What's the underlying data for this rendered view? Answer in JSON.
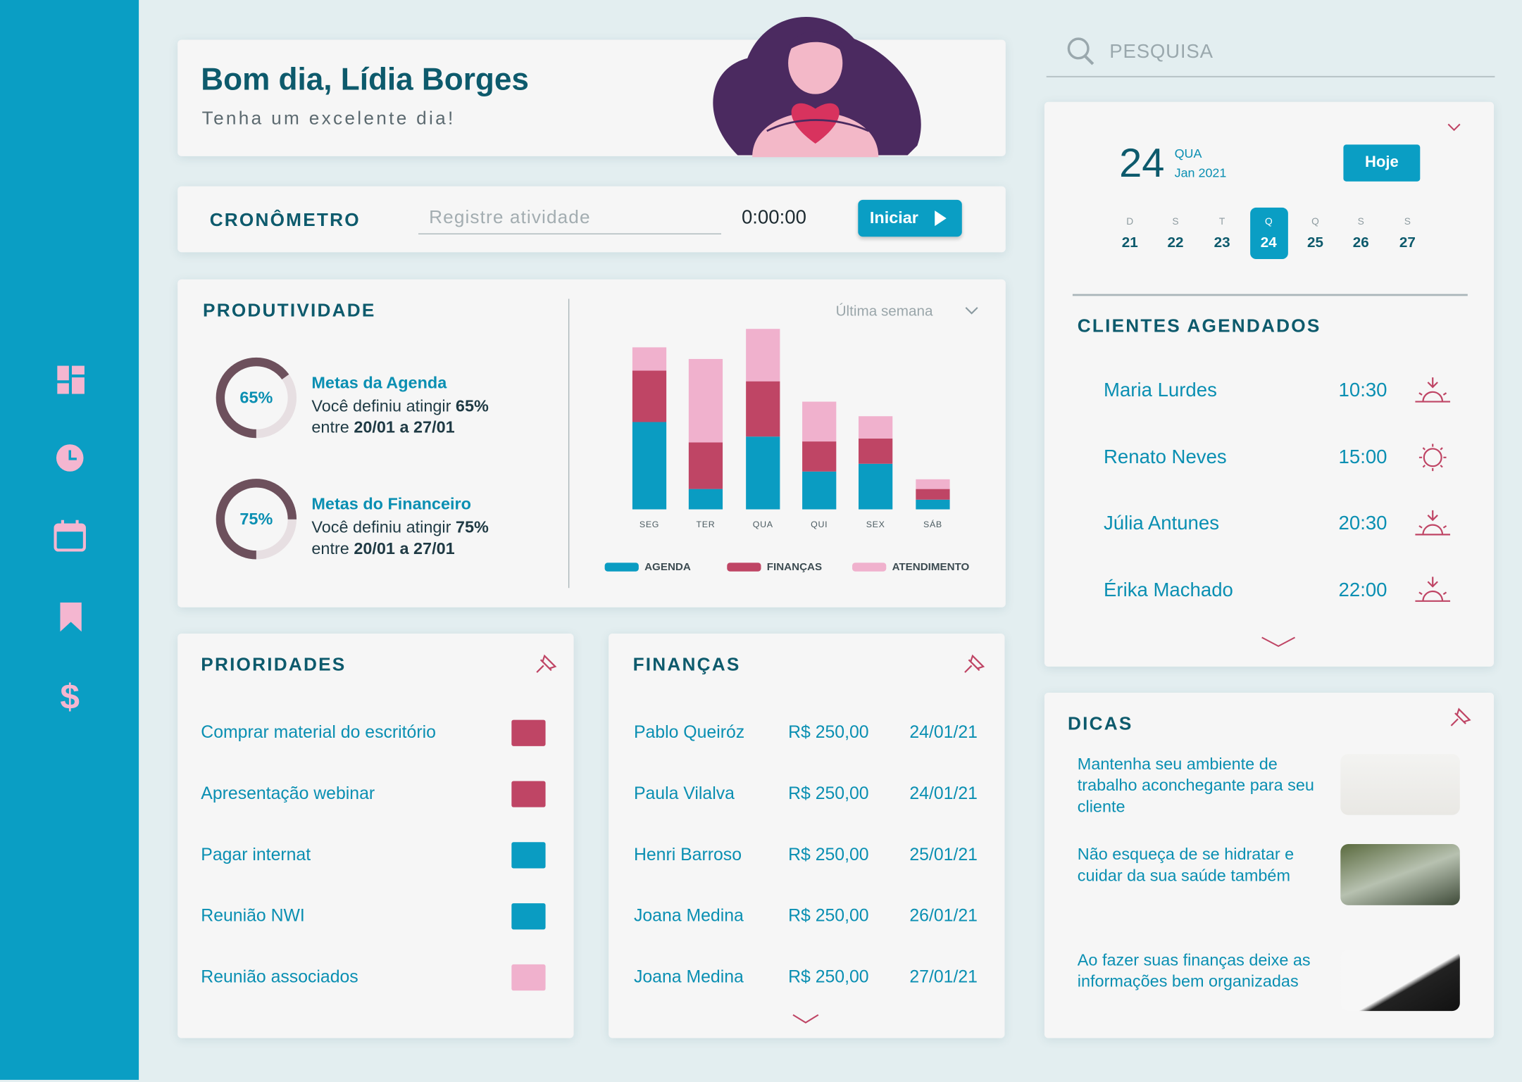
{
  "header": {
    "greeting": "Bom dia, Lídia Borges",
    "subtitle": "Tenha um excelente dia!"
  },
  "timer": {
    "title": "CRONÔMETRO",
    "placeholder": "Registre atividade",
    "time": "0:00:00",
    "button": "Iniciar"
  },
  "productivity": {
    "title": "PRODUTIVIDADE",
    "period": "Última semana",
    "goals": [
      {
        "title": "Metas da Agenda",
        "value": 65,
        "label": "65%",
        "text": "Você definiu atingir",
        "between": "entre",
        "range": "20/01 a 27/01"
      },
      {
        "title": "Metas do Financeiro",
        "value": 75,
        "label": "75%",
        "text": "Você definiu atingir",
        "between": "entre",
        "range": "20/01 a 27/01"
      }
    ]
  },
  "chart_data": {
    "type": "bar",
    "stacked": true,
    "categories": [
      "SEG",
      "TER",
      "QUA",
      "QUI",
      "SEX",
      "SÁB"
    ],
    "series": [
      {
        "name": "AGENDA",
        "color": "#0a9cc2",
        "values": [
          90,
          21,
          75,
          39,
          47,
          10
        ]
      },
      {
        "name": "FINANÇAS",
        "color": "#bf4565",
        "values": [
          53,
          48,
          57,
          31,
          26,
          11
        ]
      },
      {
        "name": "ATENDIMENTO",
        "color": "#f0b1cd",
        "values": [
          24,
          86,
          54,
          41,
          23,
          10
        ]
      }
    ]
  },
  "priorities": {
    "title": "PRIORIDADES",
    "items": [
      {
        "label": "Comprar material do escritório",
        "color": "#bf4565"
      },
      {
        "label": "Apresentação webinar",
        "color": "#bf4565"
      },
      {
        "label": "Pagar internat",
        "color": "#0a9cc2"
      },
      {
        "label": "Reunião NWI",
        "color": "#0a9cc2"
      },
      {
        "label": "Reunião associados",
        "color": "#f0b1cd"
      }
    ]
  },
  "finances": {
    "title": "FINANÇAS",
    "rows": [
      [
        "Pablo Queiróz",
        "R$ 250,00",
        "24/01/21"
      ],
      [
        "Paula Vilalva",
        "R$ 250,00",
        "24/01/21"
      ],
      [
        "Henri Barroso",
        "R$ 250,00",
        "25/01/21"
      ],
      [
        "Joana Medina",
        "R$ 250,00",
        "26/01/21"
      ],
      [
        "Joana Medina",
        "R$ 250,00",
        "27/01/21"
      ]
    ]
  },
  "search": {
    "placeholder": "PESQUISA"
  },
  "calendar": {
    "day": "24",
    "weekday": "QUA",
    "month": "Jan 2021",
    "today_button": "Hoje",
    "selected": 3,
    "week": [
      {
        "letter": "D",
        "day": "21"
      },
      {
        "letter": "S",
        "day": "22"
      },
      {
        "letter": "T",
        "day": "23"
      },
      {
        "letter": "Q",
        "day": "24"
      },
      {
        "letter": "Q",
        "day": "25"
      },
      {
        "letter": "S",
        "day": "26"
      },
      {
        "letter": "S",
        "day": "27"
      }
    ]
  },
  "clients": {
    "title": "CLIENTES AGENDADOS",
    "rows": [
      {
        "name": "Maria Lurdes",
        "time": "10:30"
      },
      {
        "name": "Renato Neves",
        "time": "15:00"
      },
      {
        "name": "Júlia Antunes",
        "time": "20:30"
      },
      {
        "name": "Érika Machado",
        "time": "22:00"
      }
    ]
  },
  "tips": {
    "title": "DICAS",
    "items": [
      "Mantenha seu ambiente de trabalho aconchegante para seu cliente",
      "Não esqueça de se hidratar e cuidar da sua saúde também",
      "Ao fazer suas finanças deixe as informações bem organizadas"
    ]
  }
}
